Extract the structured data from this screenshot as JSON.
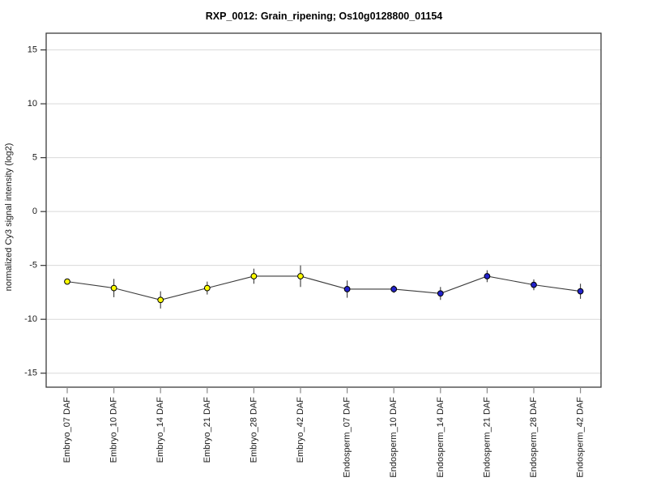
{
  "chart_data": {
    "type": "line",
    "title": "RXP_0012: Grain_ripening; Os10g0128800_01154",
    "ylabel": "normalized Cy3 signal intensity (log2)",
    "xlabel": "",
    "categories": [
      "Embryo_07 DAF",
      "Embryo_10 DAF",
      "Embryo_14 DAF",
      "Embryo_21 DAF",
      "Embryo_28 DAF",
      "Embryo_42 DAF",
      "Endosperm_07 DAF",
      "Endosperm_10 DAF",
      "Endosperm_14 DAF",
      "Endosperm_21 DAF",
      "Endosperm_28 DAF",
      "Endosperm_42 DAF"
    ],
    "values": [
      -6.5,
      -7.1,
      -8.2,
      -7.1,
      -6.0,
      -6.0,
      -7.2,
      -7.2,
      -7.6,
      -6.0,
      -6.8,
      -7.4
    ],
    "errors": [
      0.15,
      0.85,
      0.8,
      0.6,
      0.7,
      1.0,
      0.8,
      0.35,
      0.6,
      0.55,
      0.5,
      0.7
    ],
    "point_colors": [
      "#ffff00",
      "#ffff00",
      "#ffff00",
      "#ffff00",
      "#ffff00",
      "#ffff00",
      "#2222cc",
      "#2222cc",
      "#2222cc",
      "#2222cc",
      "#2222cc",
      "#2222cc"
    ],
    "groups": [
      {
        "name": "Embryo",
        "marker_color": "#ffff00",
        "count": 6
      },
      {
        "name": "Endosperm",
        "marker_color": "#2222cc",
        "count": 6
      }
    ],
    "yticks": [
      15,
      10,
      5,
      0,
      -5,
      -10,
      -15
    ],
    "ylim": [
      -16.3,
      16.55
    ],
    "grid": true,
    "legend": "none",
    "colors": {
      "line": "#3a3a3a",
      "error_bar": "#3a3a3a",
      "grid": "#d9d9d9",
      "frame": "#3c3c3c",
      "y_tick": "#333333",
      "x_tick": "#8a8a8a",
      "marker_outline": "#000000",
      "background": "#ffffff"
    }
  }
}
